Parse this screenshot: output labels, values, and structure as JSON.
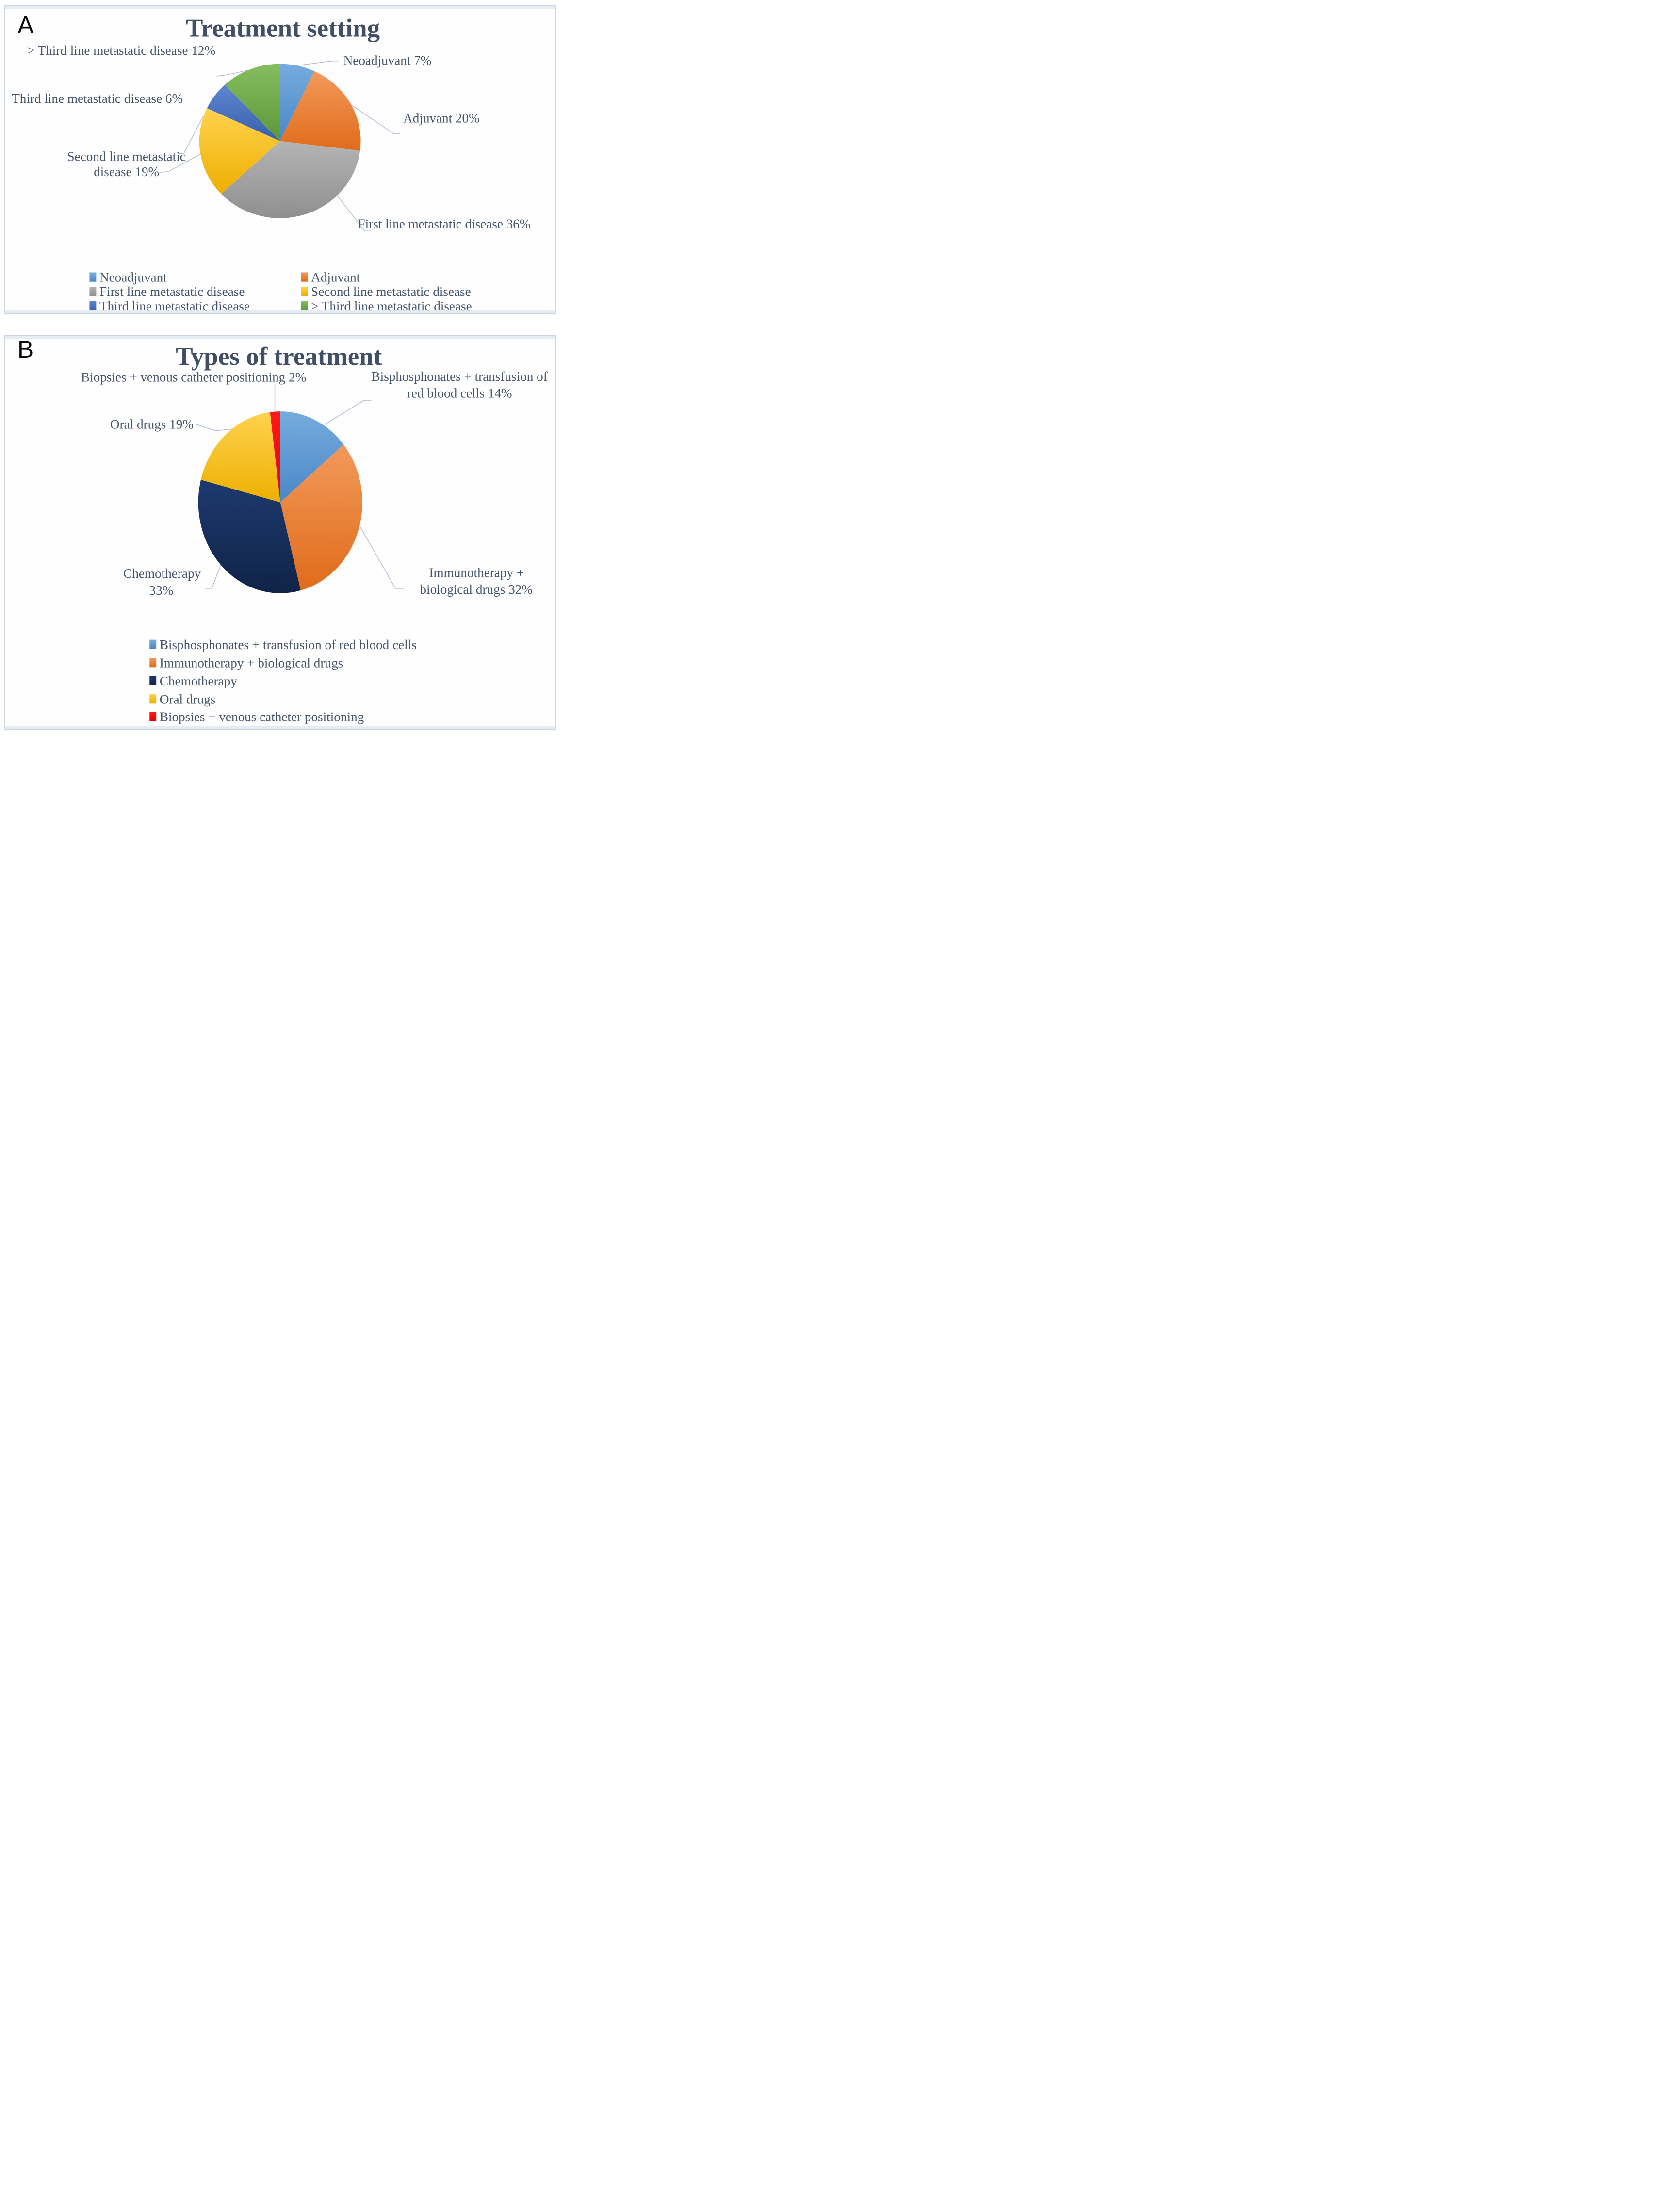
{
  "figure": {
    "panels": [
      {
        "letter": "A",
        "title": "Treatment setting"
      },
      {
        "letter": "B",
        "title": "Types of treatment"
      }
    ]
  },
  "chart_data": [
    {
      "type": "pie",
      "panel": "A",
      "title": "Treatment setting",
      "start_angle_deg": 0,
      "direction": "clockwise",
      "legend_position": "bottom, 2 columns",
      "slices": [
        {
          "label": "Neoadjuvant",
          "value_pct": 7,
          "callout_lines": [
            "Neoadjuvant 7%"
          ],
          "color": "#5B9BD5",
          "color_light": "#76ACDE",
          "color_dark": "#4A87C7"
        },
        {
          "label": "Adjuvant",
          "value_pct": 20,
          "callout_lines": [
            "Adjuvant 20%"
          ],
          "color": "#ED7D31",
          "color_light": "#F2995B",
          "color_dark": "#E06C1A"
        },
        {
          "label": "First line metastatic disease",
          "value_pct": 36,
          "callout_lines": [
            "First line metastatic disease 36%"
          ],
          "color": "#A5A5A5",
          "color_light": "#B4B4B4",
          "color_dark": "#8F8F8F"
        },
        {
          "label": "Second line metastatic disease",
          "value_pct": 19,
          "callout_lines": [
            "Second line metastatic",
            "disease  19%"
          ],
          "color": "#FFC000",
          "color_light": "#FFD24F",
          "color_dark": "#EDAF00"
        },
        {
          "label": "Third line metastatic disease",
          "value_pct": 6,
          "callout_lines": [
            "Third line metastatic disease 6%"
          ],
          "color": "#4472C4",
          "color_light": "#5E86CF",
          "color_dark": "#3760AD"
        },
        {
          "label": "> Third line metastatic disease",
          "value_pct": 12,
          "callout_lines": [
            "> Third line metastatic disease 12%"
          ],
          "color": "#70AD47",
          "color_light": "#85BD5F",
          "color_dark": "#5D9738"
        }
      ],
      "legend": [
        "Neoadjuvant",
        "Adjuvant",
        "First line metastatic disease",
        "Second line metastatic disease",
        "Third line metastatic disease",
        "> Third line metastatic disease"
      ]
    },
    {
      "type": "pie",
      "panel": "B",
      "title": "Types of treatment",
      "start_angle_deg": 0,
      "direction": "clockwise",
      "legend_position": "bottom, 1 column",
      "slices": [
        {
          "label": "Bisphosphonates + transfusion of red blood cells",
          "value_pct": 14,
          "callout_lines": [
            "Bisphosphonates + transfusion of",
            "red blood cells 14%"
          ],
          "color": "#5B9BD5",
          "color_light": "#76ACDE",
          "color_dark": "#4A87C7"
        },
        {
          "label": "Immunotherapy + biological drugs",
          "value_pct": 32,
          "callout_lines": [
            "Immunotherapy +",
            "biological drugs 32%"
          ],
          "color": "#ED7D31",
          "color_light": "#F2995B",
          "color_dark": "#E06C1A"
        },
        {
          "label": "Chemotherapy",
          "value_pct": 33,
          "callout_lines": [
            "Chemotherapy",
            "33%"
          ],
          "color": "#16305F",
          "color_light": "#1D3A6F",
          "color_dark": "#102347"
        },
        {
          "label": "Oral drugs",
          "value_pct": 19,
          "callout_lines": [
            "Oral drugs 19%"
          ],
          "color": "#FFC000",
          "color_light": "#FFD24F",
          "color_dark": "#EDAF00"
        },
        {
          "label": "Biopsies + venous catheter positioning",
          "value_pct": 2,
          "callout_lines": [
            "Biopsies + venous catheter positioning 2%"
          ],
          "color": "#FF0000",
          "color_light": "#FF1A1A",
          "color_dark": "#E60000"
        }
      ],
      "legend": [
        "Bisphosphonates + transfusion of red blood cells",
        "Immunotherapy + biological drugs",
        "Chemotherapy",
        "Oral drugs",
        "Biopsies + venous catheter positioning"
      ]
    }
  ]
}
